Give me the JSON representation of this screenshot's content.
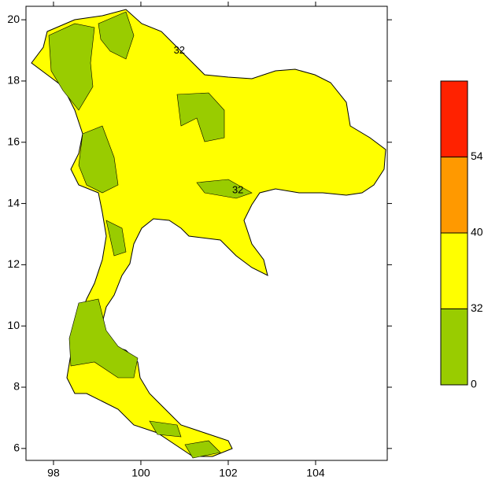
{
  "map": {
    "xlim": [
      97.37,
      105.64
    ],
    "ylim": [
      5.61,
      20.44
    ],
    "xticks": [
      98,
      100,
      102,
      104
    ],
    "yticks": [
      6,
      8,
      10,
      12,
      14,
      16,
      18,
      20
    ],
    "land_color": "#ffff00",
    "contour_labels": [
      {
        "text": "32",
        "lon": 100.88,
        "lat": 18.98
      },
      {
        "text": "32",
        "lon": 102.22,
        "lat": 14.43
      }
    ],
    "legend": {
      "levels": [
        0,
        32,
        40,
        54
      ],
      "colors": [
        "#99cc00",
        "#ffff00",
        "#ff9900",
        "#ff2200"
      ]
    }
  }
}
